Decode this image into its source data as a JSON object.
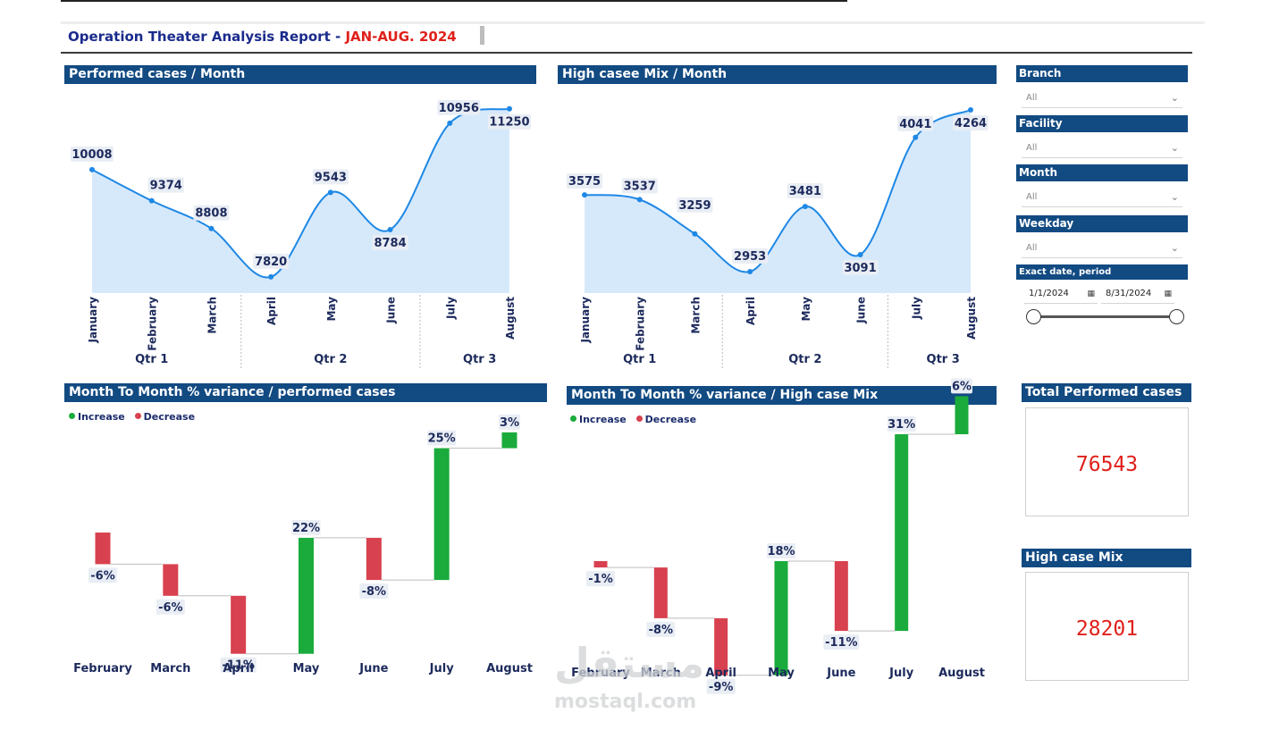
{
  "report": {
    "title_main": "Operation Theater Analysis Report",
    "title_dash": " - ",
    "title_period": "JAN-AUG. 2024"
  },
  "colors": {
    "header": "#124a82",
    "line": "#1e88e5",
    "area": "#d6e9fb",
    "increase": "#1aab3c",
    "decrease": "#d8414f",
    "kpi_value": "#e0201a",
    "title": "#1a2b8c"
  },
  "legend": {
    "increase": "Increase",
    "decrease": "Decrease"
  },
  "slicers": {
    "branch": {
      "label": "Branch",
      "value": "All"
    },
    "facility": {
      "label": "Facility",
      "value": "All"
    },
    "month": {
      "label": "Month",
      "value": "All"
    },
    "weekday": {
      "label": "Weekday",
      "value": "All"
    },
    "date_range": {
      "label": "Exact date, period",
      "start": "1/1/2024",
      "end": "8/31/2024"
    }
  },
  "kpis": {
    "total_performed": {
      "label": "Total Performed cases",
      "value": "76543"
    },
    "high_case_mix": {
      "label": "High case Mix",
      "value": "28201"
    }
  },
  "watermark": {
    "logo": "مستقل",
    "text": "mostaql.com"
  },
  "chart_data": [
    {
      "id": "performed",
      "type": "area",
      "title": "Performed cases / Month",
      "categories": [
        "January",
        "February",
        "March",
        "April",
        "May",
        "June",
        "July",
        "August"
      ],
      "quarters": [
        "Qtr 1",
        "Qtr 2",
        "Qtr 3"
      ],
      "values": [
        10008,
        9374,
        8808,
        7820,
        9543,
        8784,
        10956,
        11250
      ],
      "grid": false
    },
    {
      "id": "highmix",
      "type": "area",
      "title": "High casee Mix / Month",
      "categories": [
        "January",
        "February",
        "March",
        "April",
        "May",
        "June",
        "July",
        "August"
      ],
      "quarters": [
        "Qtr 1",
        "Qtr 2",
        "Qtr 3"
      ],
      "values": [
        3575,
        3537,
        3259,
        2953,
        3481,
        3091,
        4041,
        4264
      ],
      "grid": false
    },
    {
      "id": "var_performed",
      "type": "bar",
      "subtype": "waterfall",
      "title": "Month To Month % variance / performed cases",
      "categories": [
        "February",
        "March",
        "April",
        "May",
        "June",
        "July",
        "August"
      ],
      "values": [
        -6,
        -6,
        -11,
        22,
        -8,
        25,
        3
      ],
      "labels": [
        "-6%",
        "-6%",
        "-11%",
        "22%",
        "-8%",
        "25%",
        "3%"
      ],
      "legend": [
        "Increase",
        "Decrease"
      ],
      "legend_position": "top-left"
    },
    {
      "id": "var_highmix",
      "type": "bar",
      "subtype": "waterfall",
      "title": "Month To Month % variance / High case Mix",
      "categories": [
        "February",
        "March",
        "April",
        "May",
        "June",
        "July",
        "August"
      ],
      "values": [
        -1,
        -8,
        -9,
        18,
        -11,
        31,
        6
      ],
      "labels": [
        "-1%",
        "-8%",
        "-9%",
        "18%",
        "-11%",
        "31%",
        "6%"
      ],
      "legend": [
        "Increase",
        "Decrease"
      ],
      "legend_position": "top-left"
    }
  ]
}
